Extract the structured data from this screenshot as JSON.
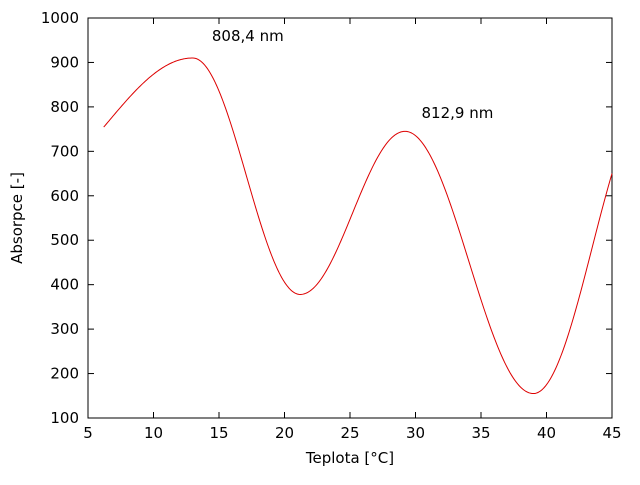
{
  "chart_data": {
    "type": "line",
    "title": "",
    "xlabel": "Teplota [°C]",
    "ylabel": "Absorpce [-]",
    "xlim": [
      5,
      45
    ],
    "ylim": [
      100,
      1000
    ],
    "xticks": [
      5,
      10,
      15,
      20,
      25,
      30,
      35,
      40,
      45
    ],
    "yticks": [
      100,
      200,
      300,
      400,
      500,
      600,
      700,
      800,
      900,
      1000
    ],
    "grid": false,
    "legend": "none",
    "line_color": "#dd0000",
    "axis_color": "#000000",
    "series": [
      {
        "name": "Absorpce",
        "interpolation": "cosine-through-extrema",
        "x_range_drawn": [
          6.2,
          45
        ],
        "endpoints": [
          {
            "x": 6.2,
            "y": 765
          },
          {
            "x": 45,
            "y": 650
          }
        ],
        "keypoints": [
          {
            "x": 0,
            "y": 620,
            "virtual": true
          },
          {
            "x": 13,
            "y": 910,
            "label": "peak 808,4 nm"
          },
          {
            "x": 21.2,
            "y": 378,
            "label": "trough"
          },
          {
            "x": 29.2,
            "y": 745,
            "label": "peak 812,9 nm"
          },
          {
            "x": 39,
            "y": 155,
            "label": "trough"
          },
          {
            "x": 48,
            "y": 815,
            "virtual": true
          }
        ]
      }
    ],
    "annotations": [
      {
        "x": 17.2,
        "y": 948,
        "text": "808,4 nm"
      },
      {
        "x": 33.2,
        "y": 775,
        "text": "812,9 nm"
      }
    ]
  }
}
